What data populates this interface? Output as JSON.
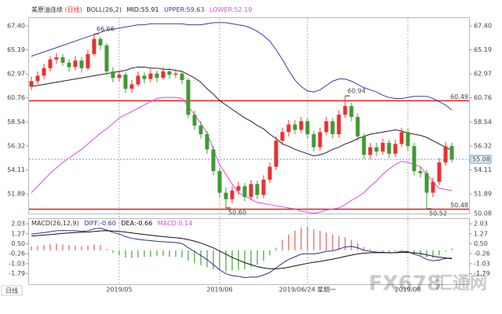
{
  "chart_data": [
    {
      "type": "candlestick",
      "title": "美原油连续",
      "period": "(日线)",
      "indicator": "BOLL(26,2)",
      "indicator_values": [
        "MID:55.91",
        "UPPER:59.63",
        "LOWER:52.19"
      ],
      "up_color": "#e8312f",
      "down_color": "#3f9a33",
      "open": [
        61.8,
        62.3,
        62.8,
        63.5,
        64.3,
        64.5,
        64.0,
        63.6,
        64.2,
        63.5,
        64.8,
        66.2,
        65.6,
        63.2,
        62.6,
        62.9,
        61.6,
        62.0,
        62.8,
        62.5,
        63.0,
        62.6,
        63.2,
        62.9,
        63.0,
        62.4,
        59.2,
        58.2,
        57.4,
        56.0,
        54.0,
        52.0,
        51.4,
        52.2,
        52.6,
        51.6,
        52.8,
        51.8,
        53.2,
        54.4,
        56.8,
        57.6,
        58.3,
        57.8,
        58.6,
        57.4,
        56.2,
        57.6,
        58.6,
        57.4,
        59.2,
        60.0,
        59.0,
        57.2,
        55.5,
        56.2,
        55.8,
        56.6,
        55.6,
        56.5,
        57.6,
        56.3,
        54.0,
        53.8,
        52.0,
        53.0,
        54.8,
        56.3
      ],
      "high": [
        62.7,
        63.2,
        63.9,
        64.6,
        64.9,
        64.8,
        64.3,
        64.6,
        64.5,
        65.2,
        66.66,
        66.4,
        65.8,
        63.6,
        63.3,
        63.1,
        62.4,
        63.2,
        63.1,
        63.4,
        63.3,
        63.6,
        63.5,
        63.4,
        63.3,
        62.6,
        59.6,
        58.6,
        57.7,
        56.3,
        54.3,
        52.5,
        52.6,
        53.0,
        52.9,
        53.2,
        53.1,
        53.6,
        54.8,
        57.2,
        58.0,
        58.7,
        58.7,
        59.0,
        58.9,
        57.7,
        58.0,
        59.0,
        58.9,
        59.6,
        60.94,
        60.3,
        59.3,
        57.5,
        56.6,
        56.6,
        57.0,
        56.9,
        56.9,
        58.0,
        57.9,
        56.6,
        54.4,
        54.1,
        53.4,
        55.2,
        56.7,
        56.6
      ],
      "low": [
        61.5,
        62.0,
        62.5,
        63.2,
        63.9,
        63.7,
        63.2,
        63.3,
        63.1,
        63.3,
        64.6,
        65.2,
        62.9,
        62.2,
        62.3,
        61.2,
        61.2,
        61.8,
        62.1,
        62.2,
        62.2,
        62.4,
        62.5,
        62.6,
        62.0,
        58.9,
        57.8,
        57.0,
        55.6,
        53.6,
        51.6,
        50.6,
        51.0,
        51.8,
        51.2,
        51.3,
        51.4,
        51.5,
        52.9,
        54.1,
        56.4,
        57.2,
        57.4,
        57.5,
        57.0,
        55.8,
        55.9,
        57.3,
        57.0,
        57.1,
        58.9,
        58.6,
        56.8,
        55.1,
        55.1,
        55.4,
        55.5,
        55.2,
        55.3,
        56.2,
        55.9,
        53.6,
        53.4,
        50.52,
        51.6,
        52.7,
        54.5,
        54.8
      ],
      "close": [
        62.3,
        62.8,
        63.5,
        64.3,
        64.5,
        64.0,
        63.6,
        64.2,
        63.5,
        64.8,
        66.2,
        65.6,
        63.2,
        62.6,
        62.9,
        61.6,
        62.0,
        62.8,
        62.5,
        63.0,
        62.6,
        63.2,
        62.9,
        63.0,
        62.4,
        59.2,
        58.2,
        57.4,
        56.0,
        54.0,
        52.0,
        51.4,
        52.2,
        52.6,
        51.6,
        52.8,
        51.8,
        53.2,
        54.4,
        56.8,
        57.6,
        58.3,
        57.8,
        58.6,
        57.4,
        56.2,
        57.6,
        58.6,
        57.4,
        59.2,
        60.0,
        59.0,
        57.2,
        55.5,
        56.2,
        55.8,
        56.6,
        55.6,
        56.5,
        57.6,
        56.3,
        54.0,
        53.8,
        52.0,
        53.0,
        54.8,
        56.3,
        55.08
      ],
      "series": [
        {
          "color": "#222222",
          "values": [
            61.8,
            61.9,
            62.0,
            62.1,
            62.2,
            62.3,
            62.4,
            62.5,
            62.6,
            62.7,
            62.8,
            62.9,
            63.0,
            63.1,
            63.2,
            63.3,
            63.5,
            63.6,
            63.6,
            63.5,
            63.5,
            63.4,
            63.4,
            63.3,
            63.2,
            62.9,
            62.6,
            62.2,
            61.6,
            61.1,
            60.5,
            60.1,
            59.7,
            59.3,
            58.9,
            58.6,
            58.2,
            57.9,
            57.4,
            57.0,
            56.5,
            56.3,
            56.0,
            55.8,
            55.6,
            55.4,
            55.5,
            55.7,
            56.0,
            56.2,
            56.5,
            56.7,
            57.0,
            57.2,
            57.4,
            57.5,
            57.6,
            57.7,
            57.8,
            57.7,
            57.5,
            57.4,
            57.3,
            57.1,
            56.8,
            56.5,
            56.2,
            55.91
          ]
        },
        {
          "color": "#3a3ab8",
          "values": [
            64.6,
            64.8,
            65.0,
            65.2,
            65.4,
            65.6,
            65.8,
            66.0,
            66.2,
            66.4,
            66.6,
            66.8,
            67.0,
            67.1,
            67.2,
            67.3,
            67.4,
            67.5,
            67.5,
            67.6,
            67.6,
            67.6,
            67.6,
            67.6,
            67.6,
            67.5,
            67.5,
            67.5,
            67.6,
            67.7,
            67.7,
            67.7,
            67.6,
            67.5,
            67.4,
            67.2,
            66.9,
            66.5,
            66.0,
            65.2,
            64.3,
            63.3,
            62.4,
            61.8,
            61.4,
            61.3,
            61.5,
            61.9,
            62.3,
            62.5,
            62.5,
            62.3,
            62.0,
            61.7,
            61.5,
            61.3,
            61.0,
            60.8,
            60.7,
            60.7,
            60.8,
            60.9,
            60.9,
            60.9,
            60.7,
            60.4,
            60.1,
            59.63
          ]
        },
        {
          "color": "#d84ed8",
          "values": [
            52.0,
            52.6,
            53.2,
            53.8,
            54.3,
            54.8,
            55.2,
            55.6,
            56.0,
            56.5,
            57.0,
            57.5,
            57.9,
            58.4,
            58.9,
            59.2,
            59.5,
            59.8,
            60.1,
            60.4,
            60.7,
            60.8,
            60.8,
            60.8,
            60.7,
            60.0,
            59.2,
            58.4,
            57.5,
            56.0,
            54.6,
            53.7,
            52.8,
            52.0,
            51.7,
            51.4,
            51.1,
            51.0,
            50.9,
            50.8,
            50.7,
            50.6,
            50.5,
            50.3,
            50.2,
            50.1,
            50.2,
            50.4,
            50.5,
            50.6,
            50.9,
            51.3,
            51.6,
            52.0,
            52.6,
            53.1,
            53.7,
            54.2,
            54.6,
            54.9,
            54.8,
            54.6,
            54.4,
            53.7,
            53.0,
            52.4,
            52.3,
            52.19
          ]
        }
      ],
      "ylim": [
        50.08,
        67.98
      ],
      "yticks": [
        {
          "value": 67.4,
          "label": "67.40"
        },
        65.19,
        62.97,
        60.76,
        58.54,
        56.32,
        54.11,
        51.89
      ],
      "hlines": [
        {
          "value": 60.49,
          "color": "#e02020"
        },
        {
          "value": 50.48,
          "color": "#e02020"
        }
      ],
      "last_price": 55.08,
      "annotations": [
        {
          "value": 66.66,
          "label": "66.66"
        },
        {
          "value": 60.94,
          "label": "60.94"
        },
        {
          "value": 50.6,
          "label": "50.60"
        },
        {
          "value": 50.52,
          "label": "50.52"
        }
      ],
      "xticks": [
        {
          "value": 14,
          "label": "2019/05"
        },
        {
          "value": 30,
          "label": "2019/06"
        },
        {
          "value": 60,
          "label": "2019/08"
        }
      ],
      "cursor": {
        "value": 44,
        "label": "2019/06/24 星期一"
      },
      "period_label": "日线",
      "watermark": [
        "FX678",
        "汇通网"
      ]
    },
    {
      "type": "macd",
      "indicator": "MACD(26,12,9)",
      "indicator_values": [
        "DIFF:-0.60",
        "DEA:-0.66",
        "MACD:0.14"
      ],
      "series": [
        {
          "color": "#2b2b9a",
          "values": [
            1.25,
            1.3,
            1.35,
            1.42,
            1.5,
            1.52,
            1.5,
            1.5,
            1.45,
            1.5,
            1.65,
            1.7,
            1.55,
            1.38,
            1.25,
            1.05,
            0.92,
            0.85,
            0.78,
            0.74,
            0.68,
            0.66,
            0.62,
            0.6,
            0.52,
            0.2,
            -0.1,
            -0.4,
            -0.72,
            -1.1,
            -1.5,
            -1.8,
            -1.95,
            -2.0,
            -2.1,
            -2.05,
            -2.05,
            -1.9,
            -1.7,
            -1.35,
            -1.0,
            -0.7,
            -0.5,
            -0.3,
            -0.25,
            -0.28,
            -0.2,
            -0.08,
            -0.05,
            0.1,
            0.25,
            0.3,
            0.2,
            0.0,
            -0.08,
            -0.15,
            -0.15,
            -0.2,
            -0.18,
            -0.08,
            -0.1,
            -0.3,
            -0.45,
            -0.7,
            -0.8,
            -0.75,
            -0.62,
            -0.6
          ]
        },
        {
          "color": "#111111",
          "values": [
            1.1,
            1.13,
            1.17,
            1.2,
            1.25,
            1.3,
            1.33,
            1.36,
            1.38,
            1.4,
            1.44,
            1.49,
            1.5,
            1.48,
            1.45,
            1.4,
            1.33,
            1.27,
            1.21,
            1.16,
            1.1,
            1.05,
            1.0,
            0.96,
            0.91,
            0.82,
            0.7,
            0.55,
            0.38,
            0.18,
            -0.05,
            -0.3,
            -0.55,
            -0.75,
            -0.95,
            -1.1,
            -1.25,
            -1.35,
            -1.42,
            -1.42,
            -1.38,
            -1.3,
            -1.2,
            -1.1,
            -1.0,
            -0.92,
            -0.85,
            -0.76,
            -0.68,
            -0.58,
            -0.47,
            -0.37,
            -0.28,
            -0.22,
            -0.19,
            -0.18,
            -0.18,
            -0.18,
            -0.18,
            -0.17,
            -0.16,
            -0.2,
            -0.26,
            -0.35,
            -0.45,
            -0.53,
            -0.58,
            -0.66
          ]
        }
      ],
      "histogram": {
        "up_color": "#e05a5a",
        "down_color": "#4aa040",
        "values": [
          0.3,
          0.35,
          0.4,
          0.45,
          0.5,
          0.45,
          0.4,
          0.35,
          0.3,
          0.35,
          0.45,
          0.4,
          0.1,
          -0.2,
          -0.4,
          -0.55,
          -0.6,
          -0.55,
          -0.5,
          -0.5,
          -0.45,
          -0.45,
          -0.5,
          -0.5,
          -0.55,
          -0.8,
          -1.0,
          -1.15,
          -1.3,
          -1.45,
          -1.55,
          -1.6,
          -1.55,
          -1.5,
          -1.45,
          -1.3,
          -1.1,
          -0.8,
          -0.4,
          0.2,
          0.8,
          1.2,
          1.5,
          1.75,
          1.8,
          1.6,
          1.5,
          1.35,
          1.2,
          1.1,
          1.0,
          0.8,
          0.55,
          0.25,
          0.1,
          -0.05,
          -0.1,
          -0.15,
          -0.1,
          0.05,
          -0.05,
          -0.25,
          -0.4,
          -0.55,
          -0.6,
          -0.4,
          -0.1,
          0.14
        ]
      },
      "ylim": [
        -2.6,
        2.46
      ],
      "yticks": [
        2.03,
        1.27,
        {
          "value": 0.5,
          "label": "0.50"
        },
        -0.26,
        -1.03,
        -1.79
      ]
    }
  ]
}
